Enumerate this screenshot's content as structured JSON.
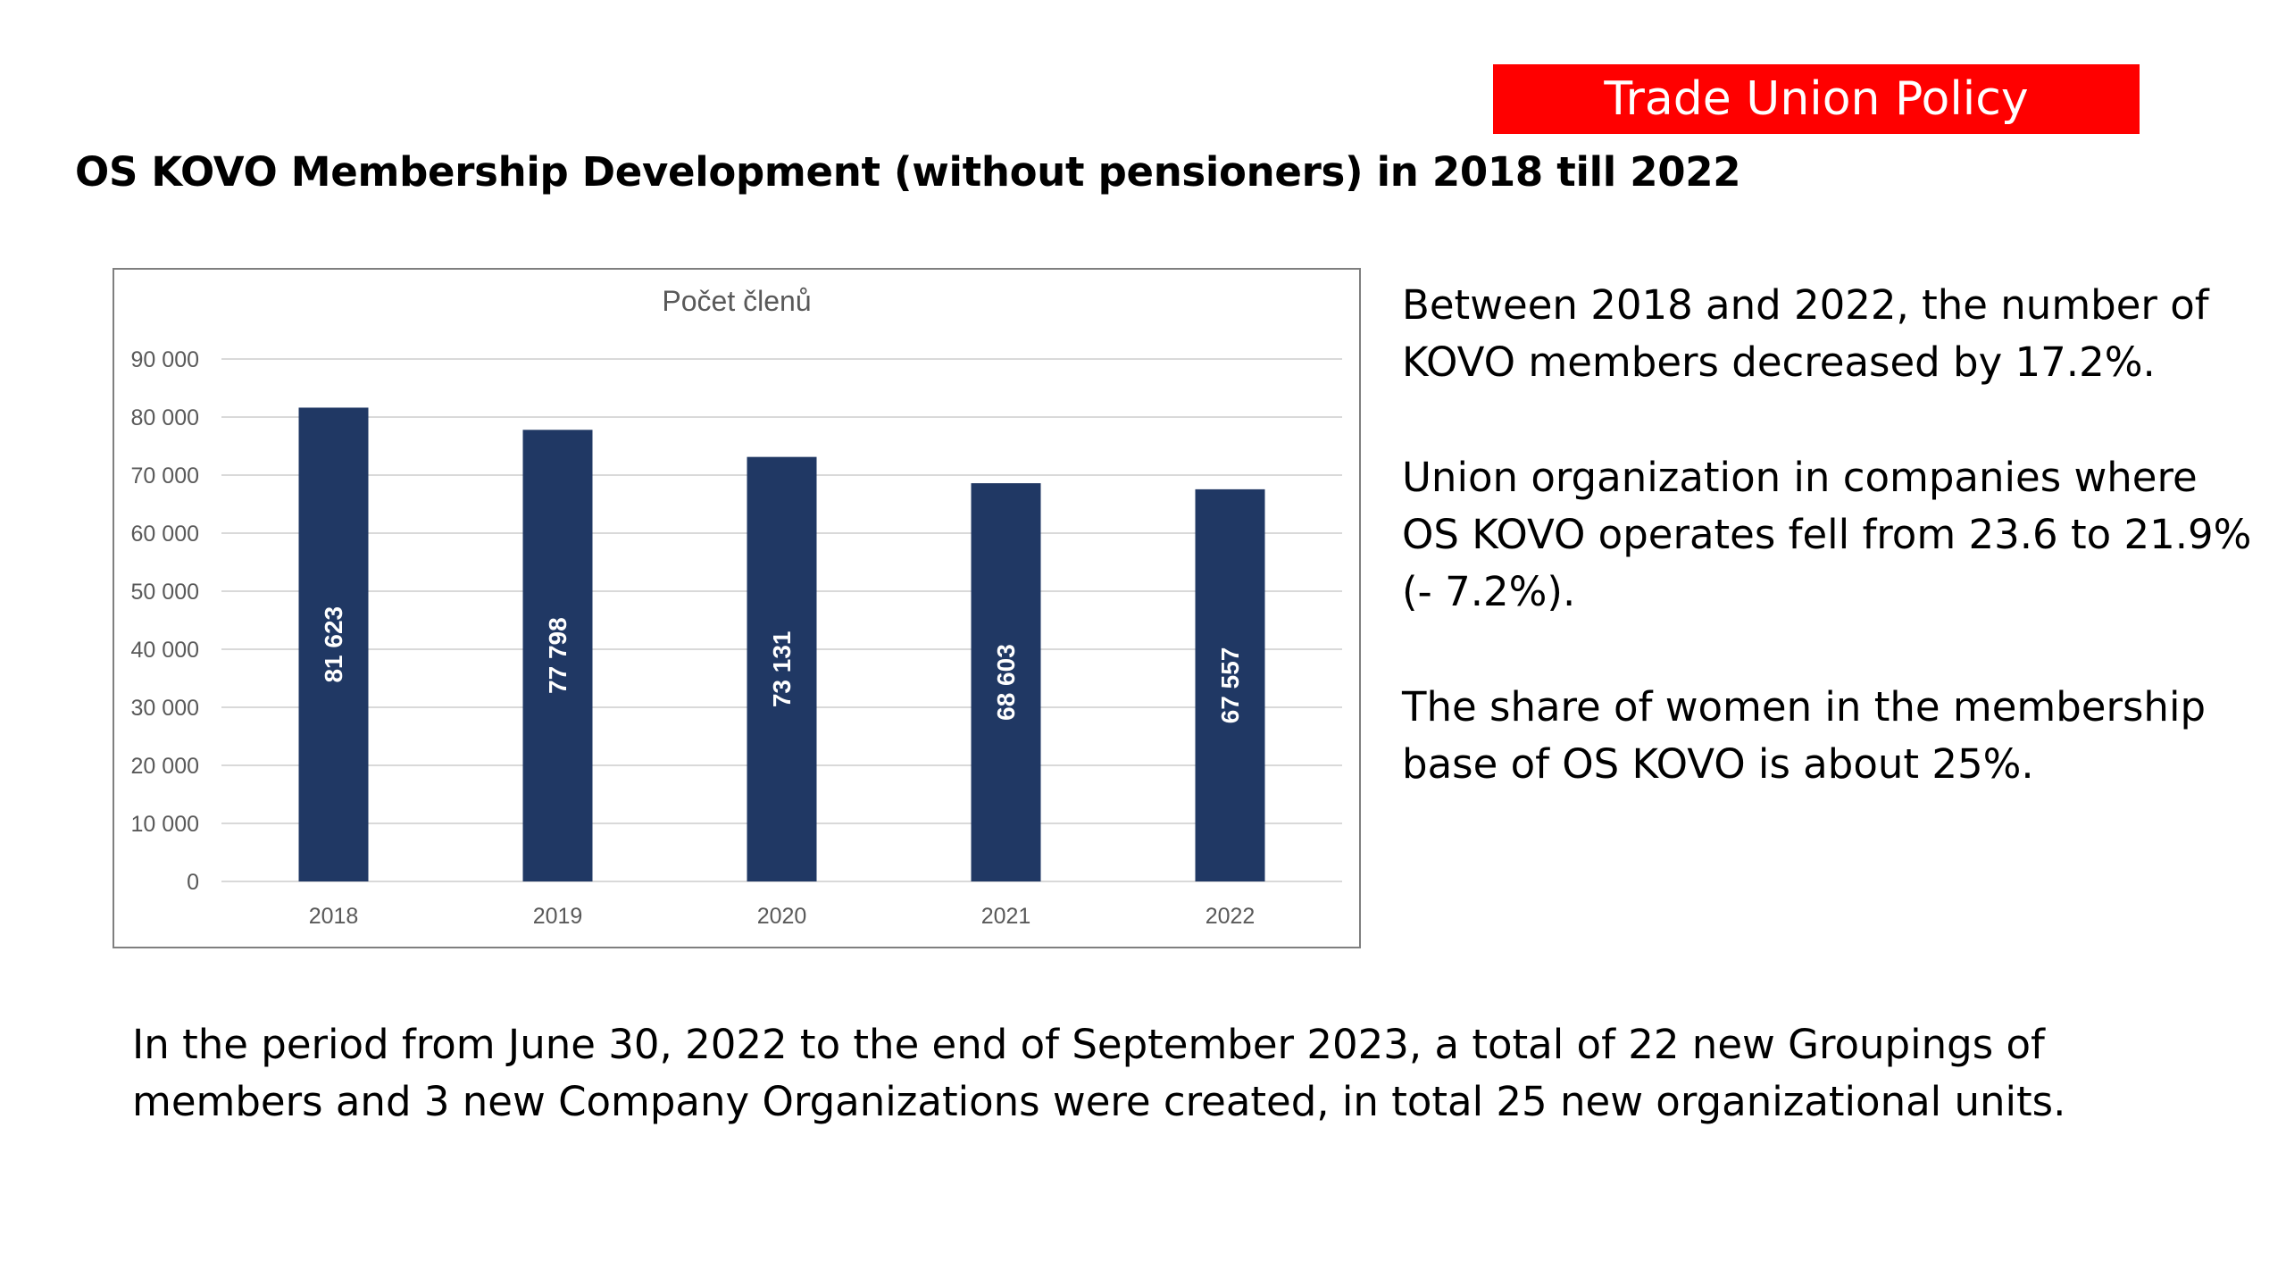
{
  "header": {
    "badge": "Trade Union Policy",
    "title": "OS KOVO Membership Development (without pensioners) in 2018 till 2022",
    "badge_color": "#ff0000"
  },
  "chart_data": {
    "type": "bar",
    "title": "Počet členů",
    "categories": [
      "2018",
      "2019",
      "2020",
      "2021",
      "2022"
    ],
    "values": [
      81623,
      77798,
      73131,
      68603,
      67557
    ],
    "data_labels": [
      "81 623",
      "77 798",
      "73 131",
      "68 603",
      "67 557"
    ],
    "y_ticks": [
      "0",
      "10 000",
      "20 000",
      "30 000",
      "40 000",
      "50 000",
      "60 000",
      "70 000",
      "80 000",
      "90 000"
    ],
    "ylim": [
      0,
      90000
    ],
    "grid": true,
    "bar_color": "#203864"
  },
  "side": {
    "p1": "Between 2018 and 2022, the number of KOVO members decreased by 17.2%.",
    "p2": "Union organization in companies where OS KOVO operates fell from 23.6 to 21.9% (- 7.2%).",
    "p3": "The share of women in the membership base of OS KOVO is about 25%."
  },
  "bottom": {
    "text": "In the period from June 30, 2022 to the end of September 2023, a total of 22 new Groupings of members and 3 new Company Organizations were created, in total 25 new organizational units."
  }
}
